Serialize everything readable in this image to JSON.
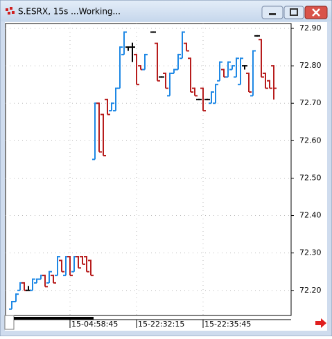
{
  "window": {
    "title": "S.ESRX, 15s ...Working..."
  },
  "chart_data": {
    "type": "ohlc",
    "categories": [
      null,
      null,
      null,
      null,
      null,
      null,
      null,
      null,
      null,
      null,
      null,
      null,
      null,
      null,
      "15-04:58:45",
      null,
      null,
      null,
      null,
      null,
      null,
      null,
      null,
      null,
      null,
      null,
      null,
      null,
      null,
      null,
      "15-22:32:15",
      null,
      null,
      null,
      null,
      null,
      null,
      null,
      null,
      null,
      null,
      null,
      null,
      null,
      null,
      null,
      "15-22:35:45",
      null,
      null,
      null,
      null,
      null,
      null,
      null,
      null,
      null,
      null,
      null,
      null,
      null,
      null,
      null,
      null,
      null
    ],
    "open": [
      72.15,
      72.17,
      72.2,
      72.22,
      72.2,
      72.2,
      72.22,
      72.23,
      72.24,
      72.22,
      72.24,
      72.24,
      72.28,
      72.24,
      72.29,
      72.25,
      72.29,
      72.29,
      72.29,
      72.28,
      72.55,
      72.7,
      72.67,
      72.71,
      72.68,
      72.68,
      72.74,
      72.83,
      72.85,
      72.85,
      72.83,
      72.8,
      72.79,
      null,
      72.89,
      72.86,
      72.77,
      72.78,
      72.72,
      72.78,
      72.79,
      72.82,
      72.86,
      72.82,
      72.74,
      72.71,
      72.74,
      72.71,
      72.7,
      72.7,
      72.76,
      72.79,
      72.77,
      72.79,
      72.77,
      72.75,
      72.8,
      72.78,
      72.72,
      72.88,
      72.87,
      72.78,
      72.76,
      72.8
    ],
    "high": [
      72.17,
      72.19,
      72.22,
      72.22,
      72.21,
      72.23,
      72.23,
      72.24,
      72.24,
      72.25,
      72.24,
      72.29,
      72.28,
      72.29,
      72.29,
      72.29,
      72.29,
      72.29,
      72.29,
      72.28,
      72.7,
      72.7,
      72.67,
      72.71,
      72.7,
      72.74,
      72.85,
      72.89,
      72.85,
      72.86,
      72.83,
      72.8,
      72.83,
      null,
      72.89,
      72.86,
      72.77,
      72.78,
      72.78,
      72.79,
      72.83,
      72.89,
      72.86,
      72.82,
      72.74,
      72.71,
      72.74,
      72.71,
      72.73,
      72.75,
      72.81,
      72.79,
      72.81,
      72.8,
      72.82,
      72.82,
      72.8,
      72.78,
      72.84,
      72.88,
      72.87,
      72.78,
      72.76,
      72.8
    ],
    "low": [
      72.15,
      72.17,
      72.2,
      72.2,
      72.2,
      72.2,
      72.22,
      72.23,
      72.21,
      72.22,
      72.22,
      72.24,
      72.25,
      72.24,
      72.24,
      72.25,
      72.26,
      72.27,
      72.25,
      72.24,
      72.55,
      72.57,
      72.56,
      72.67,
      72.68,
      72.68,
      72.74,
      72.83,
      72.84,
      72.81,
      72.75,
      72.79,
      72.79,
      null,
      72.89,
      72.76,
      72.77,
      72.74,
      72.72,
      72.78,
      72.79,
      72.82,
      72.84,
      72.73,
      72.72,
      72.71,
      72.68,
      72.71,
      72.7,
      72.7,
      72.76,
      72.77,
      72.77,
      72.79,
      72.77,
      72.75,
      72.79,
      72.73,
      72.72,
      72.88,
      72.77,
      72.74,
      72.74,
      72.71
    ],
    "close": [
      72.17,
      72.19,
      72.22,
      72.2,
      72.2,
      72.23,
      72.23,
      72.24,
      72.21,
      72.25,
      72.22,
      72.29,
      72.25,
      72.29,
      72.24,
      72.29,
      72.26,
      72.27,
      72.25,
      72.24,
      72.7,
      72.57,
      72.56,
      72.67,
      72.7,
      72.74,
      72.85,
      72.89,
      72.85,
      72.85,
      72.75,
      72.79,
      72.83,
      null,
      72.89,
      72.76,
      72.77,
      72.74,
      72.78,
      72.79,
      72.83,
      72.89,
      72.84,
      72.73,
      72.72,
      72.71,
      72.68,
      72.71,
      72.73,
      72.75,
      72.81,
      72.77,
      72.81,
      72.8,
      72.82,
      72.82,
      72.8,
      72.73,
      72.84,
      72.88,
      72.77,
      72.74,
      72.74,
      72.74
    ],
    "up_color": "#1e88e5",
    "down_color": "#b71c1c",
    "flat_color": "#000000",
    "ylim": [
      72.133,
      72.913
    ],
    "yticks": [
      {
        "value": 72.2,
        "label": "72.20"
      },
      {
        "value": 72.3,
        "label": "72.30"
      },
      {
        "value": 72.4,
        "label": "72.40"
      },
      {
        "value": 72.5,
        "label": "72.50"
      },
      {
        "value": 72.6,
        "label": "72.60"
      },
      {
        "value": 72.7,
        "label": "72.70"
      },
      {
        "value": 72.8,
        "label": "72.80"
      },
      {
        "value": 72.9,
        "label": "72.90"
      }
    ],
    "grid": true
  }
}
